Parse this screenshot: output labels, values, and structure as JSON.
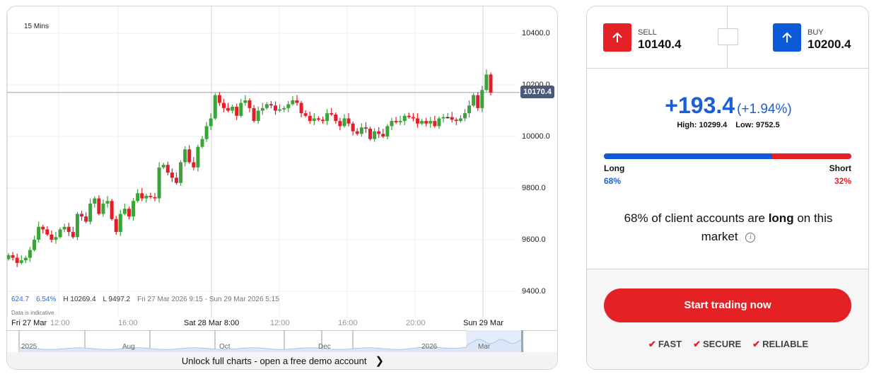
{
  "chart": {
    "interval": "15 Mins",
    "current_price_label": "10170.4",
    "y_ticks": [
      "10400.0",
      "10200.0",
      "10000.0",
      "9800.0",
      "9600.0",
      "9400.0"
    ],
    "stats": {
      "change": "624.7",
      "change_pct": "6.54%",
      "high": "H 10269.4",
      "low": "L 9497.2",
      "range": "Fri 27 Mar 2026 9:15 - Sun 29 Mar 2026 5:15"
    },
    "indicative": "Data is indicative",
    "time_labels": [
      {
        "text": "Fri 27 Mar",
        "bold": true
      },
      {
        "text": "12:00",
        "bold": false
      },
      {
        "text": "16:00",
        "bold": false
      },
      {
        "text": "Sat 28 Mar 8:00",
        "bold": true
      },
      {
        "text": "12:00",
        "bold": false
      },
      {
        "text": "16:00",
        "bold": false
      },
      {
        "text": "20:00",
        "bold": false
      },
      {
        "text": "Sun 29 Mar",
        "bold": true
      }
    ],
    "navigator_labels": [
      "2025",
      "Aug",
      "Oct",
      "Dec",
      "2026",
      "Mar"
    ],
    "footer_cta": "Unlock full charts - open a free demo account",
    "colors": {
      "up": "#3aa33a",
      "down": "#e21f26",
      "price_tag": "#4a5a78"
    }
  },
  "chart_data": {
    "type": "candlestick",
    "interval": "15 Mins",
    "ylim": [
      9400,
      10400
    ],
    "y_ticks": [
      9400,
      9600,
      9800,
      10000,
      10200,
      10400
    ],
    "grid": true,
    "current_price": 10170.4,
    "closes": [
      9540,
      9530,
      9510,
      9520,
      9530,
      9560,
      9600,
      9650,
      9640,
      9620,
      9600,
      9610,
      9640,
      9650,
      9630,
      9610,
      9700,
      9690,
      9670,
      9740,
      9760,
      9700,
      9740,
      9750,
      9680,
      9630,
      9700,
      9720,
      9690,
      9750,
      9780,
      9760,
      9770,
      9765,
      9760,
      9880,
      9890,
      9860,
      9840,
      9820,
      9900,
      9950,
      9900,
      9880,
      9960,
      9990,
      10040,
      10070,
      10160,
      10130,
      10110,
      10100,
      10115,
      10080,
      10130,
      10140,
      10110,
      10060,
      10100,
      10110,
      10125,
      10120,
      10100,
      10105,
      10110,
      10125,
      10140,
      10130,
      10090,
      10080,
      10060,
      10070,
      10065,
      10060,
      10090,
      10085,
      10060,
      10040,
      10070,
      10050,
      10020,
      10010,
      10035,
      10030,
      9990,
      10020,
      10010,
      10000,
      10040,
      10060,
      10055,
      10060,
      10080,
      10075,
      10070,
      10050,
      10060,
      10050,
      10060,
      10040,
      10070,
      10075,
      10075,
      10065,
      10060,
      10070,
      10090,
      10120,
      10160,
      10110,
      10180,
      10240,
      10170
    ]
  },
  "trade": {
    "sell": {
      "label": "SELL",
      "price": "10140.4",
      "color": "#e42125"
    },
    "buy": {
      "label": "BUY",
      "price": "10200.4",
      "color": "#0b5bd8"
    },
    "change": "+193.4",
    "change_pct": "(+1.94%)",
    "high": "High: 10299.4",
    "low": "Low: 9752.5",
    "sentiment": {
      "long_label": "Long",
      "short_label": "Short",
      "long_pct": "68%",
      "short_pct": "32%",
      "long_value": 68
    },
    "sentence": {
      "pre": "68% of client accounts are ",
      "bold": "long",
      "post": " on this market"
    },
    "cta": "Start trading now",
    "features": [
      "FAST",
      "SECURE",
      "RELIABLE"
    ]
  }
}
